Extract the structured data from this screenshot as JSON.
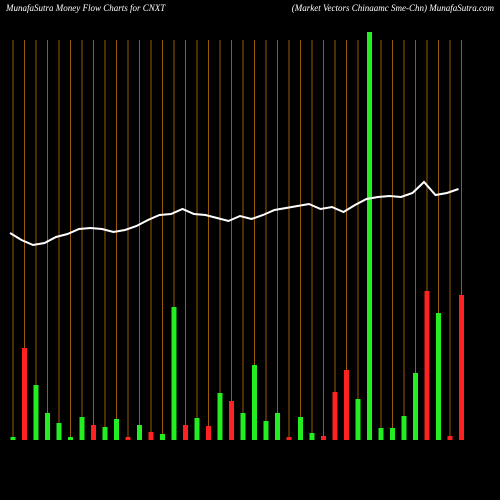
{
  "chart_data": {
    "type": "bar",
    "title": "MunafaSutra  Money Flow  Charts for CNXT",
    "subtitle": "(Market Vectors Chinaamc Sme-Chn) MunafaSutra.com",
    "ylim": [
      0,
      440
    ],
    "grid": true,
    "grid_color": "#9a5a08",
    "values": [
      3,
      92,
      55,
      27,
      17,
      3,
      23,
      15,
      13,
      21,
      3,
      15,
      8,
      6,
      133,
      15,
      22,
      14,
      47,
      39,
      27,
      75,
      19,
      27,
      3,
      23,
      7,
      4,
      48,
      70,
      41,
      408,
      12,
      12,
      24,
      67,
      149,
      127,
      4,
      145
    ],
    "bar_colors": [
      "#22ee22",
      "#ff2222",
      "#22ee22",
      "#22ee22",
      "#22ee22",
      "#22ee22",
      "#22ee22",
      "#ff2222",
      "#22ee22",
      "#22ee22",
      "#ff2222",
      "#22ee22",
      "#ff2222",
      "#22ee22",
      "#22ee22",
      "#ff2222",
      "#22ee22",
      "#ff2222",
      "#22ee22",
      "#ff2222",
      "#22ee22",
      "#22ee22",
      "#22ee22",
      "#22ee22",
      "#ff2222",
      "#22ee22",
      "#22ee22",
      "#ff2222",
      "#ff2222",
      "#ff2222",
      "#22ee22",
      "#22ee22",
      "#22ee22",
      "#22ee22",
      "#22ee22",
      "#22ee22",
      "#ff2222",
      "#22ee22",
      "#ff2222",
      "#ff2222"
    ],
    "line": {
      "color": "#ffffff",
      "values": [
        207,
        200,
        195,
        197,
        203,
        206,
        211,
        212,
        211,
        208,
        210,
        214,
        220,
        225,
        226,
        231,
        226,
        225,
        222,
        219,
        224,
        221,
        225,
        230,
        232,
        234,
        236,
        231,
        233,
        228,
        235,
        241,
        243,
        244,
        243,
        247,
        258,
        245,
        247,
        251
      ]
    }
  }
}
